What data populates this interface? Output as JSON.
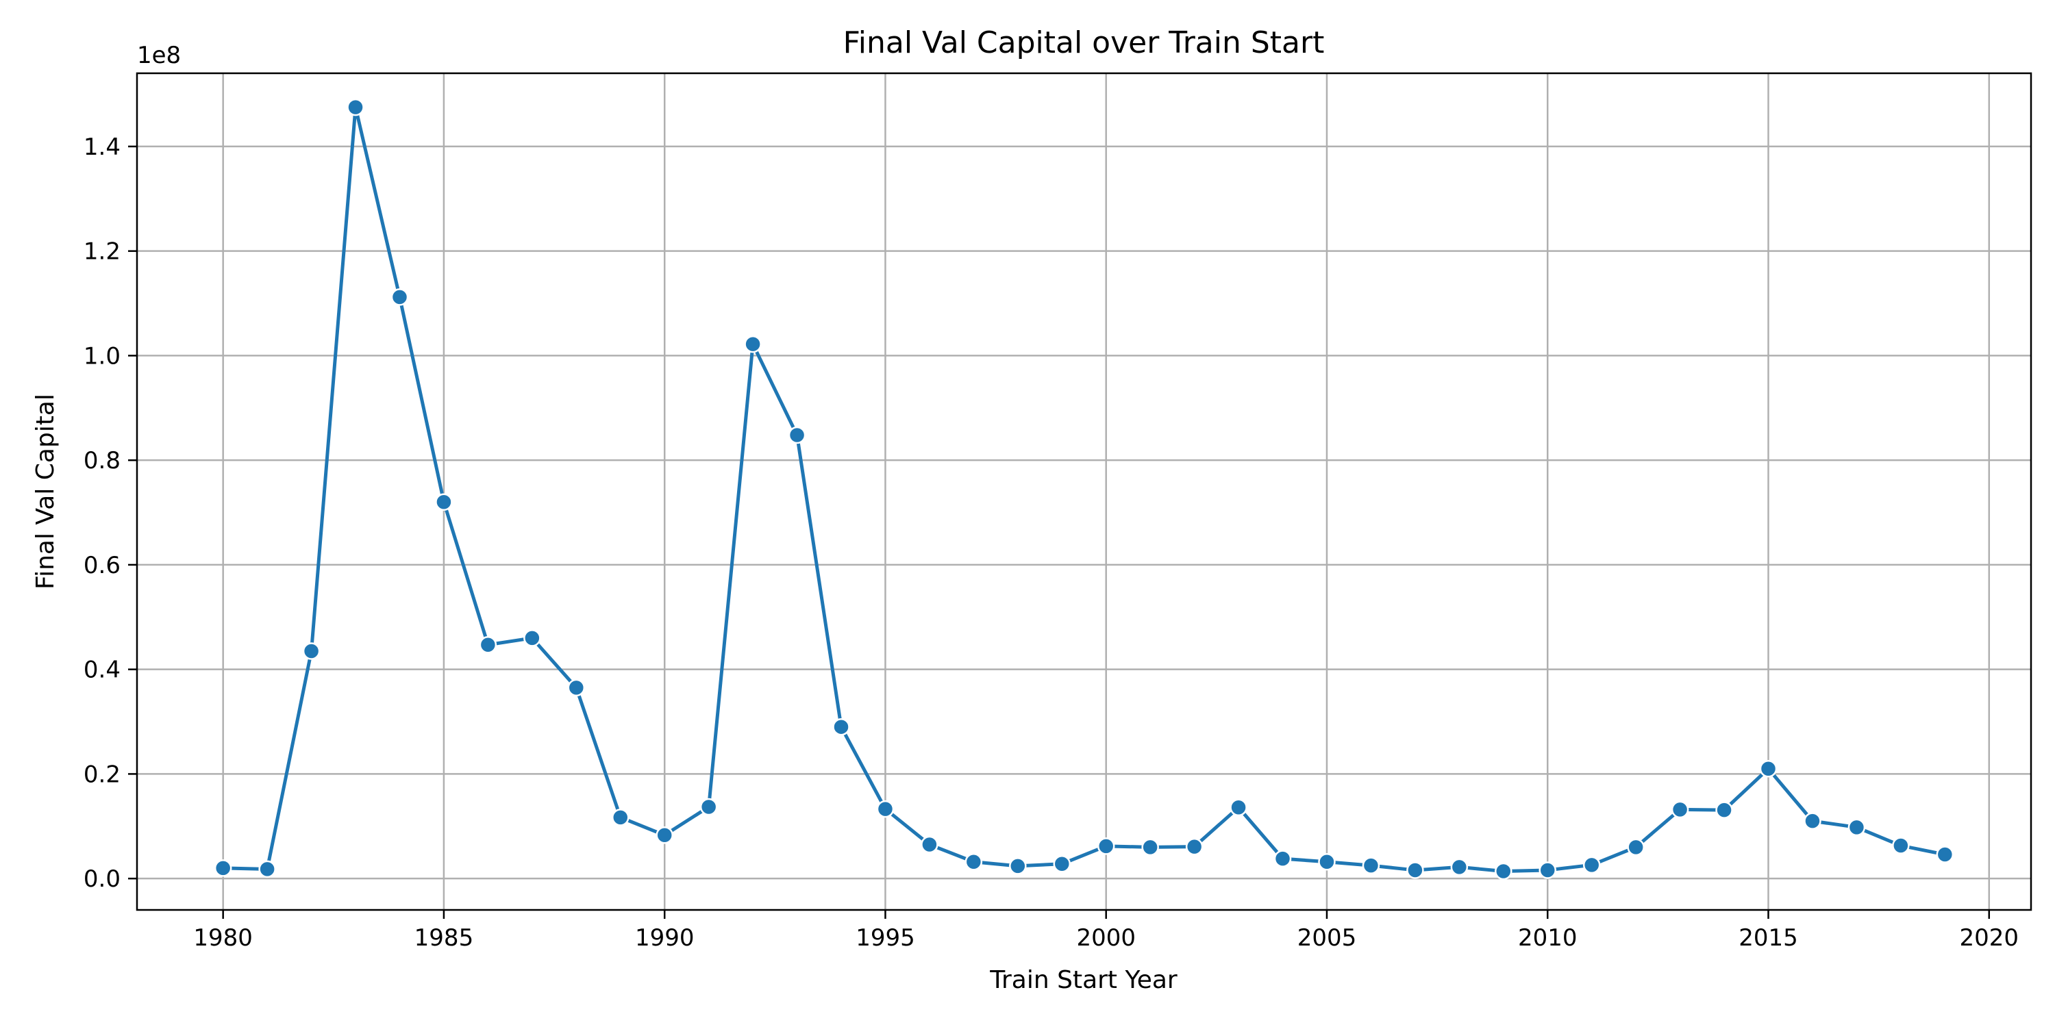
{
  "chart_data": {
    "type": "line",
    "title": "Final Val Capital over Train Start",
    "xlabel": "Train Start Year",
    "ylabel": "Final Val Capital",
    "y_offset_label": "1e8",
    "xlim": [
      1978.05,
      2020.95
    ],
    "ylim": [
      -0.06,
      1.54
    ],
    "x_ticks": [
      1980,
      1985,
      1990,
      1995,
      2000,
      2005,
      2010,
      2015,
      2020
    ],
    "x_tick_labels": [
      "1980",
      "1985",
      "1990",
      "1995",
      "2000",
      "2005",
      "2010",
      "2015",
      "2020"
    ],
    "y_ticks": [
      0.0,
      0.2,
      0.4,
      0.6,
      0.8,
      1.0,
      1.2,
      1.4
    ],
    "y_tick_labels": [
      "0.0",
      "0.2",
      "0.4",
      "0.6",
      "0.8",
      "1.0",
      "1.2",
      "1.4"
    ],
    "grid": true,
    "color": "#1f77b4",
    "marker": "circle",
    "series": [
      {
        "x": [
          1980,
          1981,
          1982,
          1983,
          1984,
          1985,
          1986,
          1987,
          1988,
          1989,
          1990,
          1991,
          1992,
          1993,
          1994,
          1995,
          1996,
          1997,
          1998,
          1999,
          2000,
          2001,
          2002,
          2003,
          2004,
          2005,
          2006,
          2007,
          2008,
          2009,
          2010,
          2011,
          2012,
          2013,
          2014,
          2015,
          2016,
          2017,
          2018,
          2019
        ],
        "values": [
          0.02,
          0.018,
          0.435,
          1.475,
          1.112,
          0.72,
          0.447,
          0.46,
          0.365,
          0.117,
          0.083,
          0.137,
          1.022,
          0.848,
          0.29,
          0.133,
          0.065,
          0.032,
          0.024,
          0.028,
          0.062,
          0.06,
          0.061,
          0.136,
          0.038,
          0.032,
          0.025,
          0.016,
          0.022,
          0.014,
          0.016,
          0.026,
          0.06,
          0.132,
          0.131,
          0.21,
          0.11,
          0.098,
          0.063,
          0.046
        ]
      }
    ]
  }
}
